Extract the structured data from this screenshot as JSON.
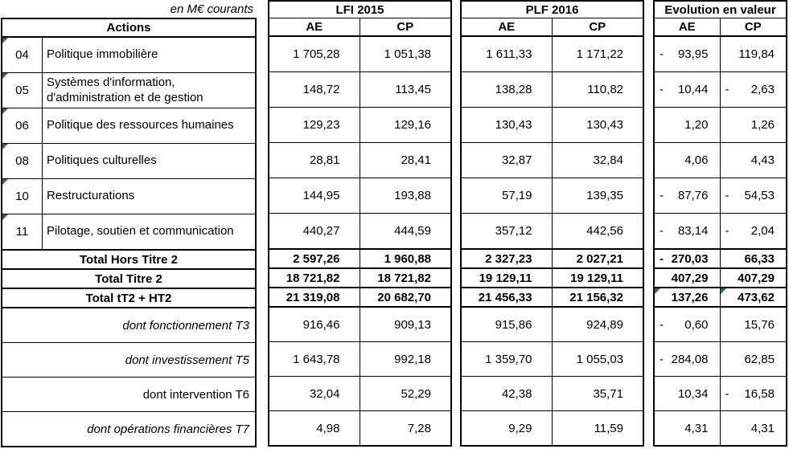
{
  "colors": {
    "grid": "#000000",
    "tri": "#1e7a1e",
    "paper": "#ffffff"
  },
  "note": "en M€ courants",
  "actions": {
    "header": "Actions",
    "rows": [
      {
        "code": "04",
        "label": "Politique immobilière"
      },
      {
        "code": "05",
        "label": "Systèmes d'information, d'administration et de gestion"
      },
      {
        "code": "06",
        "label": "Politique des ressources humaines"
      },
      {
        "code": "08",
        "label": "Politiques culturelles"
      },
      {
        "code": "10",
        "label": "Restructurations"
      },
      {
        "code": "11",
        "label": "Pilotage, soutien et communication"
      }
    ],
    "totals": [
      "Total Hors Titre 2",
      "Total Titre 2",
      "Total tT2 + HT2"
    ],
    "details": [
      "dont fonctionnement T3",
      "dont investissement T5",
      "dont intervention T6",
      "dont opérations financières T7"
    ]
  },
  "lfi2015": {
    "title": "LFI 2015",
    "col_ae": "AE",
    "col_cp": "CP",
    "rows": [
      {
        "ae_sign": "",
        "ae": "1 705,28",
        "cp_sign": "",
        "cp": "1 051,38"
      },
      {
        "ae_sign": "",
        "ae": "148,72",
        "cp_sign": "",
        "cp": "113,45"
      },
      {
        "ae_sign": "",
        "ae": "129,23",
        "cp_sign": "",
        "cp": "129,16"
      },
      {
        "ae_sign": "",
        "ae": "28,81",
        "cp_sign": "",
        "cp": "28,41"
      },
      {
        "ae_sign": "",
        "ae": "144,95",
        "cp_sign": "",
        "cp": "193,88"
      },
      {
        "ae_sign": "",
        "ae": "440,27",
        "cp_sign": "",
        "cp": "444,59"
      }
    ],
    "totals": [
      {
        "ae_sign": "",
        "ae": "2 597,26",
        "cp_sign": "",
        "cp": "1 960,88"
      },
      {
        "ae_sign": "",
        "ae": "18 721,82",
        "cp_sign": "",
        "cp": "18 721,82"
      },
      {
        "ae_sign": "",
        "ae": "21 319,08",
        "cp_sign": "",
        "cp": "20 682,70"
      }
    ],
    "details": [
      {
        "ae_sign": "",
        "ae": "916,46",
        "cp_sign": "",
        "cp": "909,13"
      },
      {
        "ae_sign": "",
        "ae": "1 643,78",
        "cp_sign": "",
        "cp": "992,18"
      },
      {
        "ae_sign": "",
        "ae": "32,04",
        "cp_sign": "",
        "cp": "52,29"
      },
      {
        "ae_sign": "",
        "ae": "4,98",
        "cp_sign": "",
        "cp": "7,28"
      }
    ]
  },
  "plf2016": {
    "title": "PLF 2016",
    "col_ae": "AE",
    "col_cp": "CP",
    "rows": [
      {
        "ae_sign": "",
        "ae": "1 611,33",
        "cp_sign": "",
        "cp": "1 171,22"
      },
      {
        "ae_sign": "",
        "ae": "138,28",
        "cp_sign": "",
        "cp": "110,82"
      },
      {
        "ae_sign": "",
        "ae": "130,43",
        "cp_sign": "",
        "cp": "130,43"
      },
      {
        "ae_sign": "",
        "ae": "32,87",
        "cp_sign": "",
        "cp": "32,84"
      },
      {
        "ae_sign": "",
        "ae": "57,19",
        "cp_sign": "",
        "cp": "139,35"
      },
      {
        "ae_sign": "",
        "ae": "357,12",
        "cp_sign": "",
        "cp": "442,56"
      }
    ],
    "totals": [
      {
        "ae_sign": "",
        "ae": "2 327,23",
        "cp_sign": "",
        "cp": "2 027,21"
      },
      {
        "ae_sign": "",
        "ae": "19 129,11",
        "cp_sign": "",
        "cp": "19 129,11"
      },
      {
        "ae_sign": "",
        "ae": "21 456,33",
        "cp_sign": "",
        "cp": "21 156,32"
      }
    ],
    "details": [
      {
        "ae_sign": "",
        "ae": "915,86",
        "cp_sign": "",
        "cp": "924,89"
      },
      {
        "ae_sign": "",
        "ae": "1 359,70",
        "cp_sign": "",
        "cp": "1 055,03"
      },
      {
        "ae_sign": "",
        "ae": "42,38",
        "cp_sign": "",
        "cp": "35,71"
      },
      {
        "ae_sign": "",
        "ae": "9,29",
        "cp_sign": "",
        "cp": "11,59"
      }
    ]
  },
  "evolution": {
    "title": "Evolution en valeur",
    "col_ae": "AE",
    "col_cp": "CP",
    "rows": [
      {
        "ae_sign": "-",
        "ae": "93,95",
        "cp_sign": "",
        "cp": "119,84"
      },
      {
        "ae_sign": "-",
        "ae": "10,44",
        "cp_sign": "-",
        "cp": "2,63"
      },
      {
        "ae_sign": "",
        "ae": "1,20",
        "cp_sign": "",
        "cp": "1,26"
      },
      {
        "ae_sign": "",
        "ae": "4,06",
        "cp_sign": "",
        "cp": "4,43"
      },
      {
        "ae_sign": "-",
        "ae": "87,76",
        "cp_sign": "-",
        "cp": "54,53"
      },
      {
        "ae_sign": "-",
        "ae": "83,14",
        "cp_sign": "-",
        "cp": "2,04"
      }
    ],
    "totals": [
      {
        "ae_sign": "-",
        "ae": "270,03",
        "cp_sign": "",
        "cp": "66,33"
      },
      {
        "ae_sign": "",
        "ae": "407,29",
        "cp_sign": "",
        "cp": "407,29"
      },
      {
        "ae_sign": "",
        "ae": "137,26",
        "cp_sign": "",
        "cp": "473,62"
      }
    ],
    "details": [
      {
        "ae_sign": "-",
        "ae": "0,60",
        "cp_sign": "",
        "cp": "15,76"
      },
      {
        "ae_sign": "-",
        "ae": "284,08",
        "cp_sign": "",
        "cp": "62,85"
      },
      {
        "ae_sign": "",
        "ae": "10,34",
        "cp_sign": "-",
        "cp": "16,58"
      },
      {
        "ae_sign": "",
        "ae": "4,31",
        "cp_sign": "",
        "cp": "4,31"
      }
    ]
  }
}
